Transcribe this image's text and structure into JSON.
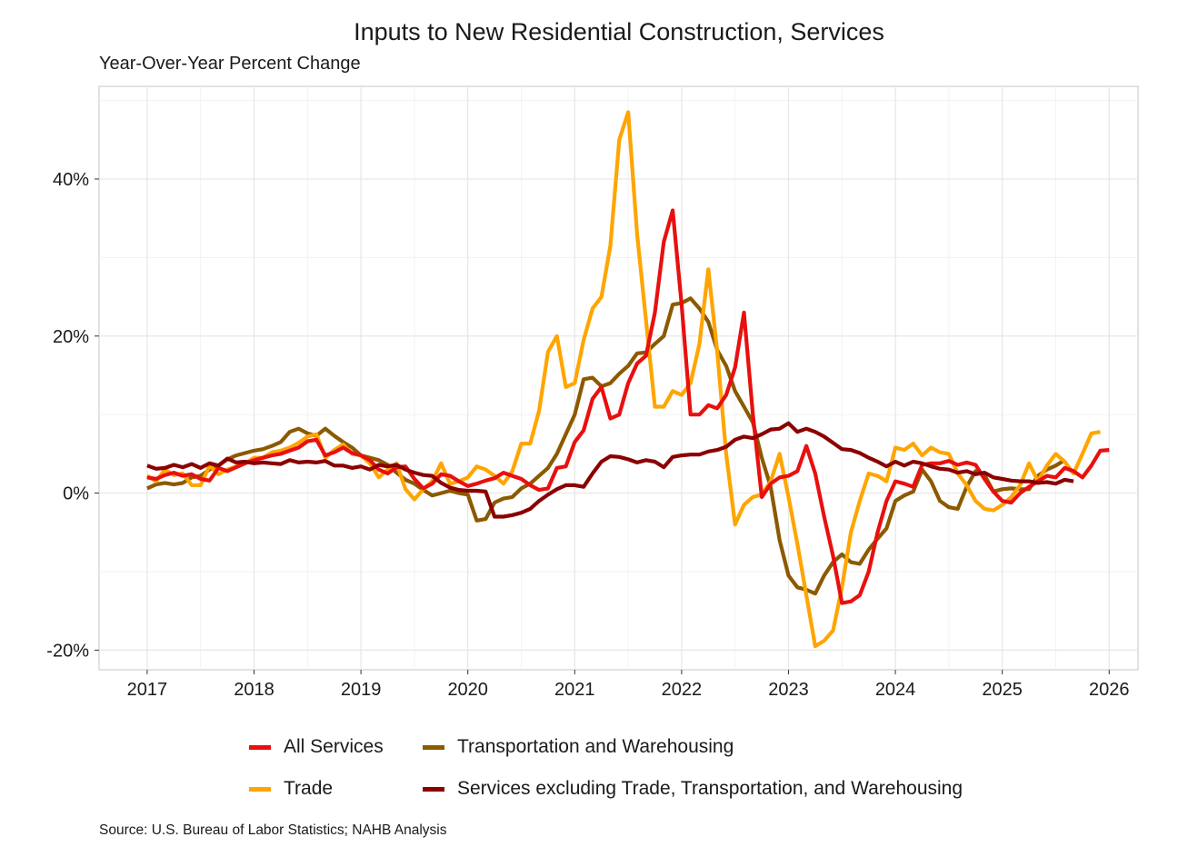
{
  "chart_data": {
    "type": "line",
    "title": "Inputs to New Residential Construction, Services",
    "subtitle": "Year-Over-Year Percent Change",
    "xlabel": "",
    "ylabel": "",
    "source": "Source: U.S. Bureau of Labor Statistics; NAHB Analysis",
    "x_start": "2017-01",
    "x_frequency": "monthly",
    "xlim": [
      2016.55,
      2026.27
    ],
    "ylim": [
      -22.5,
      51.8
    ],
    "x_ticks": [
      2017,
      2018,
      2019,
      2020,
      2021,
      2022,
      2023,
      2024,
      2025,
      2026
    ],
    "x_tick_labels": [
      "2017",
      "2018",
      "2019",
      "2020",
      "2021",
      "2022",
      "2023",
      "2024",
      "2025",
      "2026"
    ],
    "y_ticks": [
      -20,
      0,
      20,
      40
    ],
    "y_tick_labels": [
      "-20%",
      "0%",
      "20%",
      "40%"
    ],
    "grid": true,
    "legend_position": "bottom",
    "series": [
      {
        "name": "All Services",
        "color": "#e8100f",
        "values": [
          2.0,
          1.8,
          2.3,
          2.6,
          2.2,
          2.4,
          1.8,
          1.6,
          3.2,
          2.8,
          3.3,
          3.8,
          4.2,
          4.5,
          4.8,
          5.0,
          5.4,
          5.8,
          6.6,
          6.8,
          4.8,
          5.2,
          5.8,
          5.1,
          4.8,
          4.2,
          3.0,
          2.5,
          3.3,
          3.4,
          1.8,
          0.6,
          1.2,
          2.4,
          2.2,
          1.5,
          0.9,
          1.2,
          1.6,
          1.9,
          2.6,
          2.2,
          1.8,
          1.0,
          0.4,
          0.6,
          3.2,
          3.4,
          6.5,
          8.0,
          12.0,
          13.5,
          9.5,
          10.0,
          14.0,
          16.5,
          17.5,
          23.0,
          32.0,
          36.0,
          24.0,
          10.0,
          10.0,
          11.2,
          10.8,
          12.5,
          16.0,
          23.0,
          10.0,
          -0.5,
          1.2,
          2.0,
          2.2,
          2.8,
          6.0,
          2.5,
          -3.0,
          -8.0,
          -14.0,
          -13.8,
          -13.0,
          -10.0,
          -5.0,
          -1.0,
          1.5,
          1.2,
          0.8,
          3.6,
          3.8,
          3.8,
          4.1,
          3.6,
          3.9,
          3.6,
          1.8,
          0.2,
          -1.0,
          -1.2,
          0.0,
          0.8,
          1.5,
          2.2,
          2.0,
          3.2,
          2.8,
          2.0,
          3.5,
          5.4,
          5.5
        ]
      },
      {
        "name": "Trade",
        "color": "#ffa500",
        "values": [
          2.2,
          1.5,
          3.0,
          2.3,
          2.5,
          1.0,
          1.0,
          3.5,
          2.4,
          3.0,
          3.4,
          3.8,
          4.5,
          4.5,
          5.2,
          5.4,
          5.8,
          6.4,
          7.2,
          7.5,
          4.5,
          5.5,
          6.2,
          5.0,
          4.8,
          3.8,
          2.0,
          3.0,
          3.8,
          0.5,
          -0.8,
          0.5,
          1.5,
          3.8,
          1.2,
          1.5,
          2.0,
          3.4,
          3.0,
          2.2,
          1.2,
          2.8,
          6.3,
          6.3,
          10.5,
          18.0,
          20.0,
          13.5,
          14.0,
          19.5,
          23.5,
          25.0,
          31.5,
          45.0,
          48.5,
          33.0,
          22.0,
          11.0,
          11.0,
          13.0,
          12.5,
          14.0,
          19.0,
          28.5,
          18.0,
          5.0,
          -4.0,
          -1.5,
          -0.5,
          -0.2,
          1.5,
          5.0,
          -0.5,
          -6.5,
          -13.0,
          -19.5,
          -18.8,
          -17.5,
          -12.0,
          -5.0,
          -1.0,
          2.5,
          2.2,
          1.5,
          5.8,
          5.5,
          6.3,
          4.8,
          5.8,
          5.2,
          5.0,
          2.5,
          1.0,
          -1.0,
          -2.0,
          -2.2,
          -1.5,
          -0.5,
          1.0,
          3.8,
          1.5,
          3.5,
          5.0,
          4.0,
          2.5,
          5.0,
          7.6,
          7.8
        ]
      },
      {
        "name": "Transportation and Warehousing",
        "color": "#8b5a00",
        "values": [
          0.6,
          1.1,
          1.3,
          1.1,
          1.3,
          2.0,
          2.2,
          3.0,
          3.5,
          4.3,
          4.8,
          5.1,
          5.4,
          5.6,
          6.0,
          6.5,
          7.8,
          8.2,
          7.6,
          7.3,
          8.2,
          7.3,
          6.5,
          5.8,
          4.8,
          4.5,
          4.2,
          3.6,
          2.6,
          1.7,
          1.2,
          0.4,
          -0.3,
          0.0,
          0.3,
          0.0,
          -0.2,
          -3.5,
          -3.3,
          -1.2,
          -0.7,
          -0.5,
          0.6,
          1.2,
          2.2,
          3.2,
          5.0,
          7.5,
          10.0,
          14.5,
          14.7,
          13.6,
          14.0,
          15.2,
          16.2,
          17.8,
          17.9,
          19.0,
          20.0,
          24.0,
          24.2,
          24.8,
          23.5,
          21.8,
          18.2,
          16.2,
          13.0,
          11.0,
          9.0,
          4.5,
          0.8,
          -6.0,
          -10.5,
          -12.0,
          -12.3,
          -12.8,
          -10.5,
          -8.8,
          -7.8,
          -8.8,
          -9.0,
          -7.2,
          -5.8,
          -4.5,
          -1.0,
          -0.3,
          0.2,
          3.0,
          1.5,
          -1.0,
          -1.8,
          -2.0,
          0.8,
          2.8,
          2.3,
          0.2,
          0.5,
          0.6,
          0.5,
          0.5,
          2.2,
          3.0,
          3.5,
          4.2
        ]
      },
      {
        "name": "Services excluding Trade, Transportation, and Warehousing",
        "color": "#8b0000",
        "values": [
          3.5,
          3.1,
          3.2,
          3.6,
          3.3,
          3.7,
          3.2,
          3.8,
          3.5,
          4.4,
          3.9,
          4.0,
          3.8,
          3.9,
          3.8,
          3.7,
          4.2,
          3.9,
          4.0,
          3.9,
          4.1,
          3.5,
          3.5,
          3.2,
          3.4,
          3.0,
          3.6,
          3.4,
          3.6,
          3.0,
          2.6,
          2.3,
          2.2,
          1.3,
          0.7,
          0.4,
          0.3,
          0.3,
          0.2,
          -3.0,
          -3.0,
          -2.8,
          -2.5,
          -2.0,
          -1.0,
          -0.2,
          0.5,
          1.0,
          1.0,
          0.8,
          2.5,
          4.0,
          4.7,
          4.6,
          4.3,
          3.9,
          4.2,
          4.0,
          3.3,
          4.6,
          4.8,
          4.9,
          4.9,
          5.3,
          5.5,
          5.9,
          6.8,
          7.2,
          7.0,
          7.5,
          8.1,
          8.2,
          8.9,
          7.8,
          8.2,
          7.8,
          7.2,
          6.4,
          5.6,
          5.5,
          5.1,
          4.5,
          4.0,
          3.4,
          4.0,
          3.5,
          4.0,
          3.8,
          3.4,
          3.1,
          3.0,
          2.6,
          2.8,
          2.4,
          2.6,
          2.0,
          1.8,
          1.6,
          1.5,
          1.5,
          1.3,
          1.4,
          1.2,
          1.7,
          1.5
        ]
      }
    ]
  }
}
